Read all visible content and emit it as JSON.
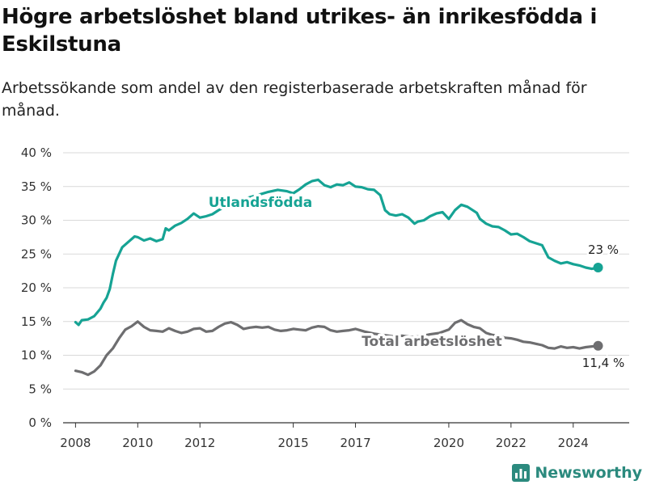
{
  "title": "Högre arbetslöshet bland utrikes- än inrikesfödda i Eskilstuna",
  "subtitle": "Arbetssökande som andel av den registerbaserade arbetskraften månad för månad.",
  "brand": "Newsworthy",
  "colors": {
    "utrikes": "#16a394",
    "total": "#6e6e70",
    "grid": "#d9d9d9",
    "axis": "#333333",
    "brand": "#2b8a7e"
  },
  "chart_data": {
    "type": "line",
    "title": "Högre arbetslöshet bland utrikes- än inrikesfödda i Eskilstuna",
    "xlabel": "",
    "ylabel": "",
    "ylim": [
      0,
      40
    ],
    "xlim": [
      2007.6,
      2025.8
    ],
    "grid": true,
    "y_ticks": [
      0,
      5,
      10,
      15,
      20,
      25,
      30,
      35,
      40
    ],
    "y_tick_labels": [
      "0 %",
      "5 %",
      "10 %",
      "15 %",
      "20 %",
      "25 %",
      "30 %",
      "35 %",
      "40 %"
    ],
    "x_ticks": [
      2008,
      2010,
      2012,
      2015,
      2017,
      2020,
      2022,
      2024
    ],
    "x_tick_labels": [
      "2008",
      "2010",
      "2012",
      "2015",
      "2017",
      "2020",
      "2022",
      "2024"
    ],
    "series": [
      {
        "name": "Utlandsfödda",
        "end_label": "23 %",
        "x": [
          2008.0,
          2008.1,
          2008.2,
          2008.4,
          2008.6,
          2008.8,
          2008.9,
          2009.0,
          2009.1,
          2009.2,
          2009.3,
          2009.5,
          2009.7,
          2009.9,
          2010.0,
          2010.2,
          2010.4,
          2010.6,
          2010.8,
          2010.9,
          2011.0,
          2011.2,
          2011.4,
          2011.6,
          2011.8,
          2012.0,
          2012.2,
          2012.4,
          2012.6,
          2012.8,
          2013.0,
          2013.3,
          2013.6,
          2013.9,
          2014.2,
          2014.5,
          2014.8,
          2015.0,
          2015.2,
          2015.4,
          2015.6,
          2015.8,
          2016.0,
          2016.2,
          2016.4,
          2016.6,
          2016.8,
          2017.0,
          2017.2,
          2017.4,
          2017.6,
          2017.8,
          2017.95,
          2018.1,
          2018.3,
          2018.5,
          2018.7,
          2018.9,
          2019.0,
          2019.2,
          2019.4,
          2019.6,
          2019.8,
          2020.0,
          2020.2,
          2020.4,
          2020.6,
          2020.8,
          2020.9,
          2021.0,
          2021.2,
          2021.4,
          2021.6,
          2021.8,
          2022.0,
          2022.2,
          2022.4,
          2022.6,
          2022.8,
          2023.0,
          2023.2,
          2023.4,
          2023.6,
          2023.8,
          2024.0,
          2024.2,
          2024.4,
          2024.6,
          2024.8
        ],
        "y": [
          14.9,
          14.5,
          15.2,
          15.3,
          15.8,
          16.9,
          17.8,
          18.5,
          19.8,
          22.0,
          24.0,
          26.0,
          26.8,
          27.6,
          27.5,
          27.0,
          27.3,
          26.9,
          27.2,
          28.8,
          28.5,
          29.2,
          29.6,
          30.2,
          31.0,
          30.4,
          30.6,
          30.9,
          31.5,
          32.0,
          32.5,
          33.0,
          33.4,
          33.8,
          34.2,
          34.5,
          34.3,
          34.0,
          34.6,
          35.3,
          35.8,
          36.0,
          35.2,
          34.9,
          35.3,
          35.2,
          35.6,
          35.0,
          34.9,
          34.6,
          34.5,
          33.7,
          31.5,
          30.9,
          30.7,
          30.9,
          30.4,
          29.5,
          29.8,
          30.0,
          30.6,
          31.0,
          31.2,
          30.2,
          31.5,
          32.3,
          32.0,
          31.4,
          31.1,
          30.2,
          29.5,
          29.1,
          29.0,
          28.5,
          27.9,
          28.0,
          27.5,
          26.9,
          26.6,
          26.3,
          24.5,
          24.0,
          23.6,
          23.8,
          23.5,
          23.3,
          23.0,
          22.8,
          23.0
        ]
      },
      {
        "name": "Total arbetslöshet",
        "end_label": "11,4 %",
        "x": [
          2008.0,
          2008.2,
          2008.4,
          2008.6,
          2008.8,
          2009.0,
          2009.2,
          2009.4,
          2009.6,
          2009.8,
          2010.0,
          2010.2,
          2010.4,
          2010.6,
          2010.8,
          2011.0,
          2011.2,
          2011.4,
          2011.6,
          2011.8,
          2012.0,
          2012.2,
          2012.4,
          2012.6,
          2012.8,
          2013.0,
          2013.2,
          2013.4,
          2013.6,
          2013.8,
          2014.0,
          2014.2,
          2014.4,
          2014.6,
          2014.8,
          2015.0,
          2015.2,
          2015.4,
          2015.6,
          2015.8,
          2016.0,
          2016.2,
          2016.4,
          2016.6,
          2016.8,
          2017.0,
          2017.3,
          2017.6,
          2017.9,
          2018.2,
          2018.5,
          2018.8,
          2019.1,
          2019.4,
          2019.7,
          2020.0,
          2020.2,
          2020.4,
          2020.6,
          2020.8,
          2021.0,
          2021.2,
          2021.4,
          2021.6,
          2021.8,
          2022.0,
          2022.2,
          2022.4,
          2022.6,
          2022.8,
          2023.0,
          2023.2,
          2023.4,
          2023.6,
          2023.8,
          2024.0,
          2024.2,
          2024.4,
          2024.6,
          2024.8
        ],
        "y": [
          7.7,
          7.5,
          7.1,
          7.6,
          8.5,
          10.0,
          11.0,
          12.5,
          13.8,
          14.3,
          15.0,
          14.2,
          13.7,
          13.6,
          13.5,
          14.0,
          13.6,
          13.3,
          13.5,
          13.9,
          14.0,
          13.5,
          13.6,
          14.2,
          14.7,
          14.9,
          14.5,
          13.9,
          14.1,
          14.2,
          14.1,
          14.2,
          13.8,
          13.6,
          13.7,
          13.9,
          13.8,
          13.7,
          14.1,
          14.3,
          14.2,
          13.7,
          13.5,
          13.6,
          13.7,
          13.9,
          13.5,
          13.2,
          13.0,
          12.8,
          12.9,
          12.7,
          12.8,
          13.1,
          13.3,
          13.8,
          14.8,
          15.2,
          14.6,
          14.2,
          14.0,
          13.3,
          13.0,
          12.9,
          12.6,
          12.5,
          12.3,
          12.0,
          11.9,
          11.7,
          11.5,
          11.1,
          11.0,
          11.3,
          11.1,
          11.2,
          11.0,
          11.2,
          11.3,
          11.4
        ]
      }
    ]
  }
}
